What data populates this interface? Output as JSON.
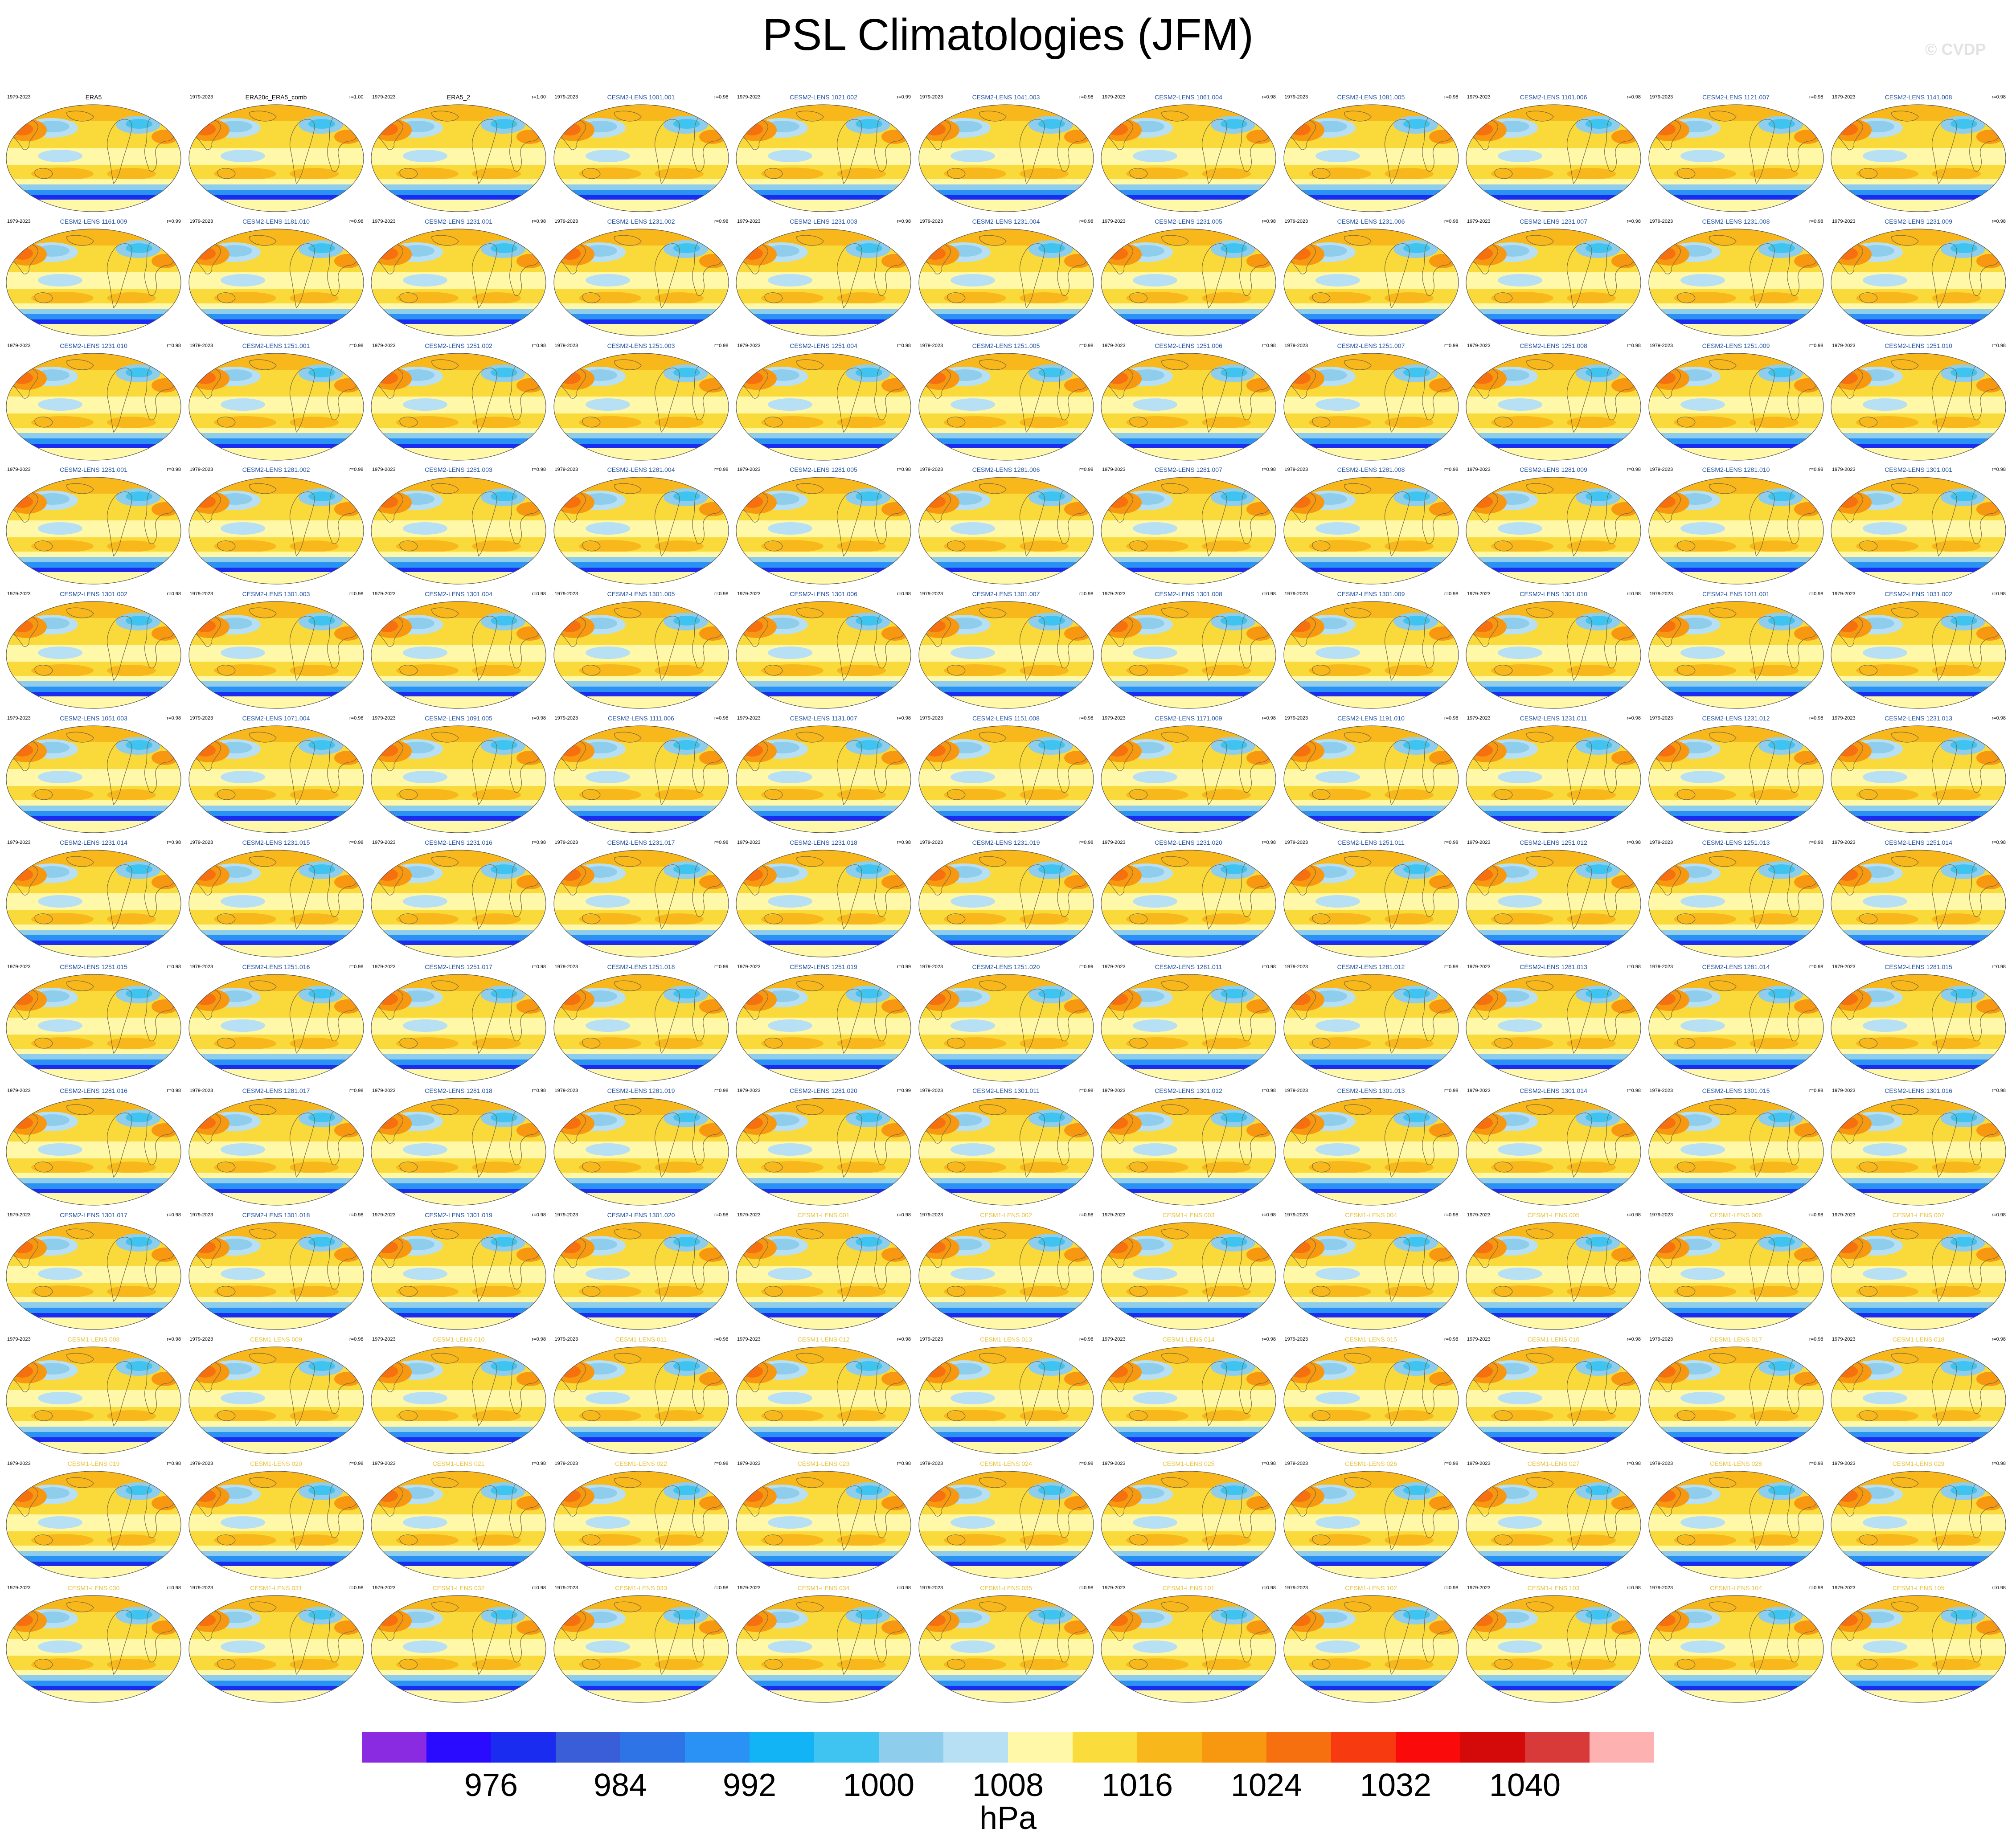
{
  "title": "PSL Climatologies (JFM)",
  "watermark": "© CVDP",
  "colorbar": {
    "colors": [
      "#8a2be2",
      "#2b0bff",
      "#1a2cf0",
      "#3a5ed8",
      "#2f74e6",
      "#2a92f4",
      "#13b4f5",
      "#3fc4f2",
      "#8fcdec",
      "#b7e0f4",
      "#fff8a8",
      "#fadc3c",
      "#f8b81c",
      "#f89810",
      "#f67010",
      "#f83a10",
      "#fa0a0a",
      "#d40a0a",
      "#d83a3a",
      "#fdb1b1"
    ],
    "tick_labels": [
      "976",
      "984",
      "992",
      "1000",
      "1008",
      "1016",
      "1024",
      "1032",
      "1040"
    ],
    "units": "hPa"
  },
  "panels": [
    {
      "title": "ERA5",
      "period": "1979-2023",
      "corr": ""
    },
    {
      "title": "ERA20c_ERA5_comb",
      "period": "1979-2023",
      "corr": "r=1.00"
    },
    {
      "title": "ERA5_2",
      "period": "1979-2023",
      "corr": "r=1.00"
    },
    {
      "title": "CESM2-LENS 1001.001",
      "period": "1979-2023",
      "corr": "r=0.98"
    },
    {
      "title": "CESM2-LENS 1021.002",
      "period": "1979-2023",
      "corr": "r=0.99"
    },
    {
      "title": "CESM2-LENS 1041.003",
      "period": "1979-2023",
      "corr": "r=0.98"
    },
    {
      "title": "CESM2-LENS 1061.004",
      "period": "1979-2023",
      "corr": "r=0.98"
    },
    {
      "title": "CESM2-LENS 1081.005",
      "period": "1979-2023",
      "corr": "r=0.98"
    },
    {
      "title": "CESM2-LENS 1101.006",
      "period": "1979-2023",
      "corr": "r=0.98"
    },
    {
      "title": "CESM2-LENS 1121.007",
      "period": "1979-2023",
      "corr": "r=0.98"
    },
    {
      "title": "CESM2-LENS 1141.008",
      "period": "1979-2023",
      "corr": "r=0.98"
    },
    {
      "title": "CESM2-LENS 1161.009",
      "period": "1979-2023",
      "corr": "r=0.99"
    },
    {
      "title": "CESM2-LENS 1181.010",
      "period": "1979-2023",
      "corr": "r=0.98"
    },
    {
      "title": "CESM2-LENS 1231.001",
      "period": "1979-2023",
      "corr": "r=0.98"
    },
    {
      "title": "CESM2-LENS 1231.002",
      "period": "1979-2023",
      "corr": "r=0.98"
    },
    {
      "title": "CESM2-LENS 1231.003",
      "period": "1979-2023",
      "corr": "r=0.98"
    },
    {
      "title": "CESM2-LENS 1231.004",
      "period": "1979-2023",
      "corr": "r=0.98"
    },
    {
      "title": "CESM2-LENS 1231.005",
      "period": "1979-2023",
      "corr": "r=0.98"
    },
    {
      "title": "CESM2-LENS 1231.006",
      "period": "1979-2023",
      "corr": "r=0.98"
    },
    {
      "title": "CESM2-LENS 1231.007",
      "period": "1979-2023",
      "corr": "r=0.98"
    },
    {
      "title": "CESM2-LENS 1231.008",
      "period": "1979-2023",
      "corr": "r=0.98"
    },
    {
      "title": "CESM2-LENS 1231.009",
      "period": "1979-2023",
      "corr": "r=0.98"
    },
    {
      "title": "CESM2-LENS 1231.010",
      "period": "1979-2023",
      "corr": "r=0.98"
    },
    {
      "title": "CESM2-LENS 1251.001",
      "period": "1979-2023",
      "corr": "r=0.98"
    },
    {
      "title": "CESM2-LENS 1251.002",
      "period": "1979-2023",
      "corr": "r=0.98"
    },
    {
      "title": "CESM2-LENS 1251.003",
      "period": "1979-2023",
      "corr": "r=0.98"
    },
    {
      "title": "CESM2-LENS 1251.004",
      "period": "1979-2023",
      "corr": "r=0.98"
    },
    {
      "title": "CESM2-LENS 1251.005",
      "period": "1979-2023",
      "corr": "r=0.98"
    },
    {
      "title": "CESM2-LENS 1251.006",
      "period": "1979-2023",
      "corr": "r=0.98"
    },
    {
      "title": "CESM2-LENS 1251.007",
      "period": "1979-2023",
      "corr": "r=0.99"
    },
    {
      "title": "CESM2-LENS 1251.008",
      "period": "1979-2023",
      "corr": "r=0.98"
    },
    {
      "title": "CESM2-LENS 1251.009",
      "period": "1979-2023",
      "corr": "r=0.98"
    },
    {
      "title": "CESM2-LENS 1251.010",
      "period": "1979-2023",
      "corr": "r=0.98"
    },
    {
      "title": "CESM2-LENS 1281.001",
      "period": "1979-2023",
      "corr": "r=0.98"
    },
    {
      "title": "CESM2-LENS 1281.002",
      "period": "1979-2023",
      "corr": "r=0.98"
    },
    {
      "title": "CESM2-LENS 1281.003",
      "period": "1979-2023",
      "corr": "r=0.98"
    },
    {
      "title": "CESM2-LENS 1281.004",
      "period": "1979-2023",
      "corr": "r=0.98"
    },
    {
      "title": "CESM2-LENS 1281.005",
      "period": "1979-2023",
      "corr": "r=0.98"
    },
    {
      "title": "CESM2-LENS 1281.006",
      "period": "1979-2023",
      "corr": "r=0.98"
    },
    {
      "title": "CESM2-LENS 1281.007",
      "period": "1979-2023",
      "corr": "r=0.98"
    },
    {
      "title": "CESM2-LENS 1281.008",
      "period": "1979-2023",
      "corr": "r=0.98"
    },
    {
      "title": "CESM2-LENS 1281.009",
      "period": "1979-2023",
      "corr": "r=0.98"
    },
    {
      "title": "CESM2-LENS 1281.010",
      "period": "1979-2023",
      "corr": "r=0.98"
    },
    {
      "title": "CESM2-LENS 1301.001",
      "period": "1979-2023",
      "corr": "r=0.98"
    },
    {
      "title": "CESM2-LENS 1301.002",
      "period": "1979-2023",
      "corr": "r=0.98"
    },
    {
      "title": "CESM2-LENS 1301.003",
      "period": "1979-2023",
      "corr": "r=0.98"
    },
    {
      "title": "CESM2-LENS 1301.004",
      "period": "1979-2023",
      "corr": "r=0.98"
    },
    {
      "title": "CESM2-LENS 1301.005",
      "period": "1979-2023",
      "corr": "r=0.98"
    },
    {
      "title": "CESM2-LENS 1301.006",
      "period": "1979-2023",
      "corr": "r=0.98"
    },
    {
      "title": "CESM2-LENS 1301.007",
      "period": "1979-2023",
      "corr": "r=0.98"
    },
    {
      "title": "CESM2-LENS 1301.008",
      "period": "1979-2023",
      "corr": "r=0.98"
    },
    {
      "title": "CESM2-LENS 1301.009",
      "period": "1979-2023",
      "corr": "r=0.98"
    },
    {
      "title": "CESM2-LENS 1301.010",
      "period": "1979-2023",
      "corr": "r=0.98"
    },
    {
      "title": "CESM2-LENS 1011.001",
      "period": "1979-2023",
      "corr": "r=0.98"
    },
    {
      "title": "CESM2-LENS 1031.002",
      "period": "1979-2023",
      "corr": "r=0.98"
    },
    {
      "title": "CESM2-LENS 1051.003",
      "period": "1979-2023",
      "corr": "r=0.98"
    },
    {
      "title": "CESM2-LENS 1071.004",
      "period": "1979-2023",
      "corr": "r=0.98"
    },
    {
      "title": "CESM2-LENS 1091.005",
      "period": "1979-2023",
      "corr": "r=0.98"
    },
    {
      "title": "CESM2-LENS 1111.006",
      "period": "1979-2023",
      "corr": "r=0.98"
    },
    {
      "title": "CESM2-LENS 1131.007",
      "period": "1979-2023",
      "corr": "r=0.98"
    },
    {
      "title": "CESM2-LENS 1151.008",
      "period": "1979-2023",
      "corr": "r=0.98"
    },
    {
      "title": "CESM2-LENS 1171.009",
      "period": "1979-2023",
      "corr": "r=0.98"
    },
    {
      "title": "CESM2-LENS 1191.010",
      "period": "1979-2023",
      "corr": "r=0.98"
    },
    {
      "title": "CESM2-LENS 1231.011",
      "period": "1979-2023",
      "corr": "r=0.98"
    },
    {
      "title": "CESM2-LENS 1231.012",
      "period": "1979-2023",
      "corr": "r=0.98"
    },
    {
      "title": "CESM2-LENS 1231.013",
      "period": "1979-2023",
      "corr": "r=0.98"
    },
    {
      "title": "CESM2-LENS 1231.014",
      "period": "1979-2023",
      "corr": "r=0.98"
    },
    {
      "title": "CESM2-LENS 1231.015",
      "period": "1979-2023",
      "corr": "r=0.98"
    },
    {
      "title": "CESM2-LENS 1231.016",
      "period": "1979-2023",
      "corr": "r=0.98"
    },
    {
      "title": "CESM2-LENS 1231.017",
      "period": "1979-2023",
      "corr": "r=0.98"
    },
    {
      "title": "CESM2-LENS 1231.018",
      "period": "1979-2023",
      "corr": "r=0.98"
    },
    {
      "title": "CESM2-LENS 1231.019",
      "period": "1979-2023",
      "corr": "r=0.98"
    },
    {
      "title": "CESM2-LENS 1231.020",
      "period": "1979-2023",
      "corr": "r=0.98"
    },
    {
      "title": "CESM2-LENS 1251.011",
      "period": "1979-2023",
      "corr": "r=0.98"
    },
    {
      "title": "CESM2-LENS 1251.012",
      "period": "1979-2023",
      "corr": "r=0.98"
    },
    {
      "title": "CESM2-LENS 1251.013",
      "period": "1979-2023",
      "corr": "r=0.98"
    },
    {
      "title": "CESM2-LENS 1251.014",
      "period": "1979-2023",
      "corr": "r=0.98"
    },
    {
      "title": "CESM2-LENS 1251.015",
      "period": "1979-2023",
      "corr": "r=0.98"
    },
    {
      "title": "CESM2-LENS 1251.016",
      "period": "1979-2023",
      "corr": "r=0.98"
    },
    {
      "title": "CESM2-LENS 1251.017",
      "period": "1979-2023",
      "corr": "r=0.98"
    },
    {
      "title": "CESM2-LENS 1251.018",
      "period": "1979-2023",
      "corr": "r=0.99"
    },
    {
      "title": "CESM2-LENS 1251.019",
      "period": "1979-2023",
      "corr": "r=0.99"
    },
    {
      "title": "CESM2-LENS 1251.020",
      "period": "1979-2023",
      "corr": "r=0.99"
    },
    {
      "title": "CESM2-LENS 1281.011",
      "period": "1979-2023",
      "corr": "r=0.98"
    },
    {
      "title": "CESM2-LENS 1281.012",
      "period": "1979-2023",
      "corr": "r=0.98"
    },
    {
      "title": "CESM2-LENS 1281.013",
      "period": "1979-2023",
      "corr": "r=0.98"
    },
    {
      "title": "CESM2-LENS 1281.014",
      "period": "1979-2023",
      "corr": "r=0.98"
    },
    {
      "title": "CESM2-LENS 1281.015",
      "period": "1979-2023",
      "corr": "r=0.98"
    },
    {
      "title": "CESM2-LENS 1281.016",
      "period": "1979-2023",
      "corr": "r=0.98"
    },
    {
      "title": "CESM2-LENS 1281.017",
      "period": "1979-2023",
      "corr": "r=0.98"
    },
    {
      "title": "CESM2-LENS 1281.018",
      "period": "1979-2023",
      "corr": "r=0.98"
    },
    {
      "title": "CESM2-LENS 1281.019",
      "period": "1979-2023",
      "corr": "r=0.98"
    },
    {
      "title": "CESM2-LENS 1281.020",
      "period": "1979-2023",
      "corr": "r=0.99"
    },
    {
      "title": "CESM2-LENS 1301.011",
      "period": "1979-2023",
      "corr": "r=0.98"
    },
    {
      "title": "CESM2-LENS 1301.012",
      "period": "1979-2023",
      "corr": "r=0.98"
    },
    {
      "title": "CESM2-LENS 1301.013",
      "period": "1979-2023",
      "corr": "r=0.98"
    },
    {
      "title": "CESM2-LENS 1301.014",
      "period": "1979-2023",
      "corr": "r=0.98"
    },
    {
      "title": "CESM2-LENS 1301.015",
      "period": "1979-2023",
      "corr": "r=0.98"
    },
    {
      "title": "CESM2-LENS 1301.016",
      "period": "1979-2023",
      "corr": "r=0.98"
    },
    {
      "title": "CESM2-LENS 1301.017",
      "period": "1979-2023",
      "corr": "r=0.98"
    },
    {
      "title": "CESM2-LENS 1301.018",
      "period": "1979-2023",
      "corr": "r=0.98"
    },
    {
      "title": "CESM2-LENS 1301.019",
      "period": "1979-2023",
      "corr": "r=0.98"
    },
    {
      "title": "CESM2-LENS 1301.020",
      "period": "1979-2023",
      "corr": "r=0.98"
    },
    {
      "title": "CESM1-LENS 001",
      "period": "1979-2023",
      "corr": "r=0.98"
    },
    {
      "title": "CESM1-LENS 002",
      "period": "1979-2023",
      "corr": "r=0.98"
    },
    {
      "title": "CESM1-LENS 003",
      "period": "1979-2023",
      "corr": "r=0.98"
    },
    {
      "title": "CESM1-LENS 004",
      "period": "1979-2023",
      "corr": "r=0.98"
    },
    {
      "title": "CESM1-LENS 005",
      "period": "1979-2023",
      "corr": "r=0.98"
    },
    {
      "title": "CESM1-LENS 006",
      "period": "1979-2023",
      "corr": "r=0.98"
    },
    {
      "title": "CESM1-LENS 007",
      "period": "1979-2023",
      "corr": "r=0.98"
    },
    {
      "title": "CESM1-LENS 008",
      "period": "1979-2023",
      "corr": "r=0.98"
    },
    {
      "title": "CESM1-LENS 009",
      "period": "1979-2023",
      "corr": "r=0.98"
    },
    {
      "title": "CESM1-LENS 010",
      "period": "1979-2023",
      "corr": "r=0.98"
    },
    {
      "title": "CESM1-LENS 011",
      "period": "1979-2023",
      "corr": "r=0.98"
    },
    {
      "title": "CESM1-LENS 012",
      "period": "1979-2023",
      "corr": "r=0.98"
    },
    {
      "title": "CESM1-LENS 013",
      "period": "1979-2023",
      "corr": "r=0.98"
    },
    {
      "title": "CESM1-LENS 014",
      "period": "1979-2023",
      "corr": "r=0.98"
    },
    {
      "title": "CESM1-LENS 015",
      "period": "1979-2023",
      "corr": "r=0.98"
    },
    {
      "title": "CESM1-LENS 016",
      "period": "1979-2023",
      "corr": "r=0.98"
    },
    {
      "title": "CESM1-LENS 017",
      "period": "1979-2023",
      "corr": "r=0.98"
    },
    {
      "title": "CESM1-LENS 018",
      "period": "1979-2023",
      "corr": "r=0.98"
    },
    {
      "title": "CESM1-LENS 019",
      "period": "1979-2023",
      "corr": "r=0.98"
    },
    {
      "title": "CESM1-LENS 020",
      "period": "1979-2023",
      "corr": "r=0.98"
    },
    {
      "title": "CESM1-LENS 021",
      "period": "1979-2023",
      "corr": "r=0.98"
    },
    {
      "title": "CESM1-LENS 022",
      "period": "1979-2023",
      "corr": "r=0.98"
    },
    {
      "title": "CESM1-LENS 023",
      "period": "1979-2023",
      "corr": "r=0.98"
    },
    {
      "title": "CESM1-LENS 024",
      "period": "1979-2023",
      "corr": "r=0.98"
    },
    {
      "title": "CESM1-LENS 025",
      "period": "1979-2023",
      "corr": "r=0.98"
    },
    {
      "title": "CESM1-LENS 026",
      "period": "1979-2023",
      "corr": "r=0.98"
    },
    {
      "title": "CESM1-LENS 027",
      "period": "1979-2023",
      "corr": "r=0.98"
    },
    {
      "title": "CESM1-LENS 028",
      "period": "1979-2023",
      "corr": "r=0.98"
    },
    {
      "title": "CESM1-LENS 029",
      "period": "1979-2023",
      "corr": "r=0.98"
    },
    {
      "title": "CESM1-LENS 030",
      "period": "1979-2023",
      "corr": "r=0.98"
    },
    {
      "title": "CESM1-LENS 031",
      "period": "1979-2023",
      "corr": "r=0.98"
    },
    {
      "title": "CESM1-LENS 032",
      "period": "1979-2023",
      "corr": "r=0.98"
    },
    {
      "title": "CESM1-LENS 033",
      "period": "1979-2023",
      "corr": "r=0.98"
    },
    {
      "title": "CESM1-LENS 034",
      "period": "1979-2023",
      "corr": "r=0.98"
    },
    {
      "title": "CESM1-LENS 035",
      "period": "1979-2023",
      "corr": "r=0.98"
    },
    {
      "title": "CESM1-LENS 101",
      "period": "1979-2023",
      "corr": "r=0.98"
    },
    {
      "title": "CESM1-LENS 102",
      "period": "1979-2023",
      "corr": "r=0.98"
    },
    {
      "title": "CESM1-LENS 103",
      "period": "1979-2023",
      "corr": "r=0.98"
    },
    {
      "title": "CESM1-LENS 104",
      "period": "1979-2023",
      "corr": "r=0.98"
    },
    {
      "title": "CESM1-LENS 105",
      "period": "1979-2023",
      "corr": "r=0.98"
    }
  ]
}
